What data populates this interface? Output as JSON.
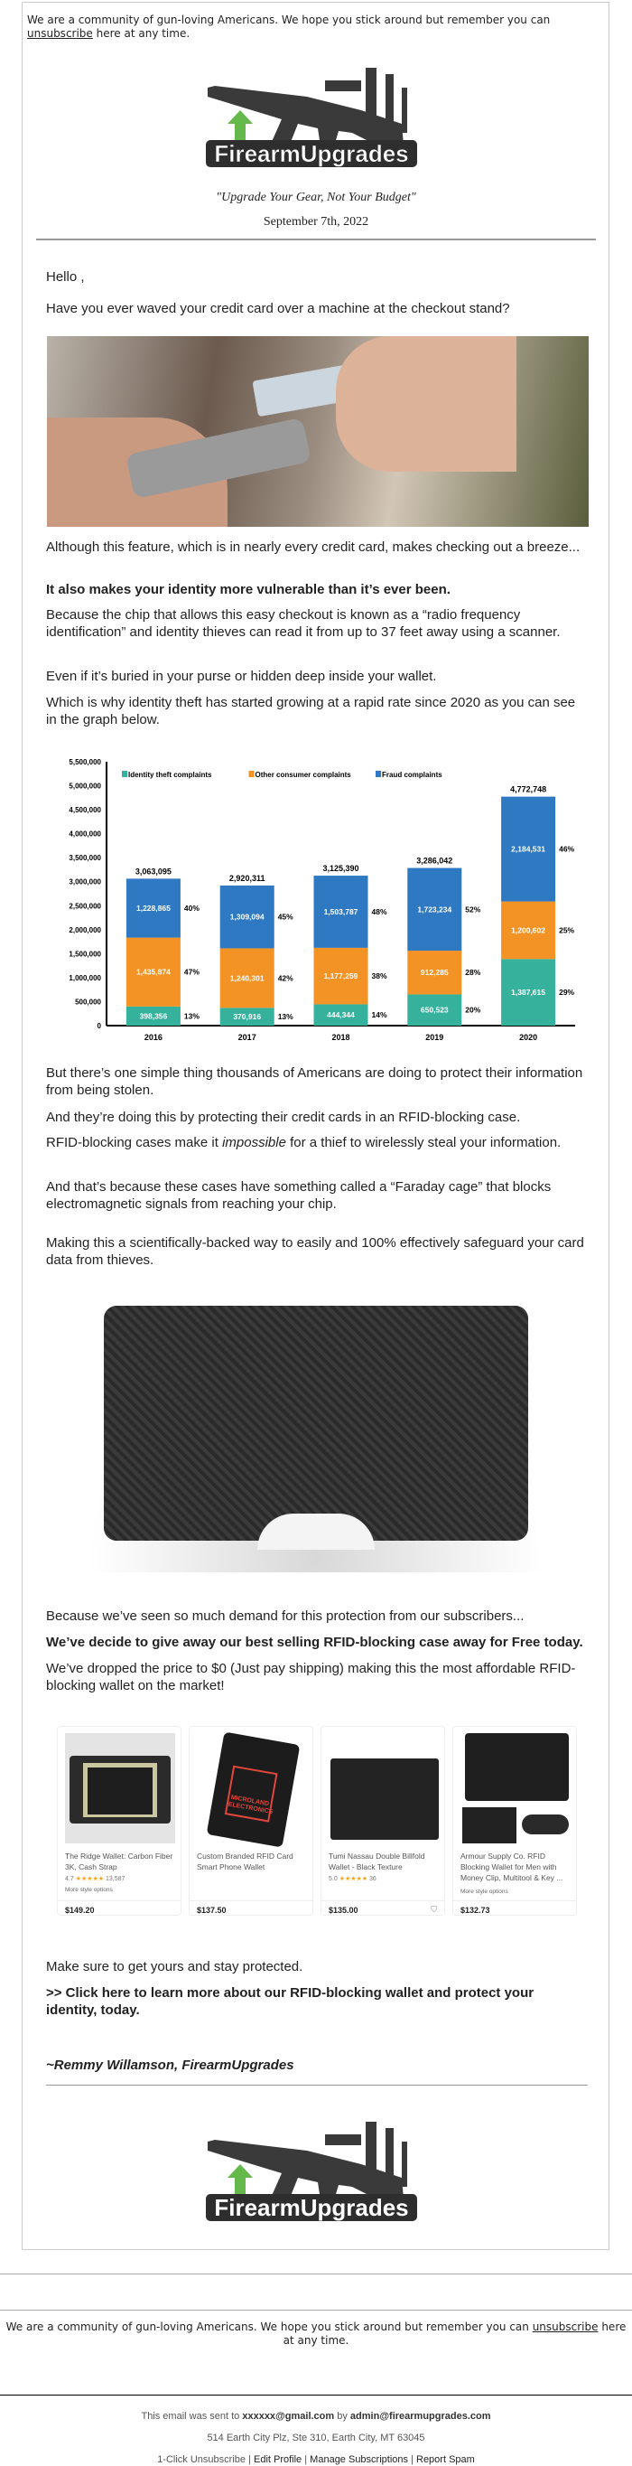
{
  "header": {
    "note_before": "We are a community of gun-loving Americans. We hope you stick around but remember you can ",
    "unsubscribe": "unsubscribe",
    "note_after": " here at any time.",
    "logo_text": "FirearmUpgrades",
    "tagline": "\"Upgrade Your Gear, Not Your Budget\"",
    "date": "September 7th, 2022"
  },
  "body": {
    "greeting": "Hello ,",
    "question": "Have you ever waved your credit card over a machine at the checkout stand?",
    "p1": "Although this feature, which is in nearly every credit card, makes checking out a breeze...",
    "p2": "It also makes your identity more vulnerable than it’s ever been.",
    "p3": "Because the chip that allows this easy checkout is known as a “radio frequency identification” and identity thieves can read it from up to 37 feet away using a scanner.",
    "p4": "Even if it’s buried in your purse or hidden deep inside your wallet.",
    "p5": "Which is why identity theft has started growing at a rapid rate since 2020 as you can see in the graph below.",
    "p6": "But there’s one simple thing thousands of Americans are doing to protect their information from being stolen.",
    "p7": "And they’re doing this by protecting their credit cards in an RFID-blocking case.",
    "p8a": "RFID-blocking cases make it ",
    "p8i": "impossible",
    "p8b": " for a thief to wirelessly steal your information.",
    "p9": "And that’s because these cases have something called a “Faraday cage” that blocks electromagnetic signals from reaching your chip.",
    "p10": "Making this a scientifically-backed way to easily and 100% effectively safeguard your card data from thieves.",
    "p11": "Because we’ve seen so much demand for this protection from our subscribers...",
    "p12": "We’ve decide to give away our best selling RFID-blocking case away for Free today.",
    "p13": "We’ve dropped the price to $0 (Just pay shipping) making this the most affordable RFID-blocking wallet on the market!",
    "p14": "Make sure to get yours and stay protected.",
    "cta": ">> Click here to learn more about our RFID-blocking wallet and protect your identity, today.",
    "signature": "~Remmy Willamson, FirearmUpgrades"
  },
  "products": [
    {
      "title": "The Ridge Wallet: Carbon Fiber 3K, Cash Strap",
      "rating": "4.7",
      "stars": "★★★★★",
      "reviews": "13,587",
      "more": "More style options",
      "price": "$149.20"
    },
    {
      "title": "Custom Branded RFID Card Smart Phone Wallet",
      "rating": "",
      "stars": "",
      "reviews": "",
      "more": "",
      "price": "$137.50",
      "brand": "MICROLAND ELECTRONICS"
    },
    {
      "title": "Tumi Nassau Double Billfold Wallet - Black Texture",
      "rating": "5.0",
      "stars": "★★★★★",
      "reviews": "36",
      "more": "",
      "price": "$135.00"
    },
    {
      "title": "Armour Supply Co. RFID Blocking Wallet for Men with Money Clip, Multitool & Key ...",
      "rating": "",
      "stars": "",
      "reviews": "",
      "more": "More style options",
      "price": "$132.73"
    }
  ],
  "chart_data": {
    "type": "bar",
    "stacked": true,
    "categories": [
      "2016",
      "2017",
      "2018",
      "2019",
      "2020"
    ],
    "series": [
      {
        "name": "Identity theft complaints",
        "color": "#36b19c",
        "values": [
          398356,
          370916,
          444344,
          650523,
          1387615
        ],
        "labels": [
          "398,356",
          "370,916",
          "444,344",
          "650,523",
          "1,387,615"
        ],
        "pct": [
          "13%",
          "13%",
          "14%",
          "20%",
          "29%"
        ]
      },
      {
        "name": "Other consumer complaints",
        "color": "#f39325",
        "values": [
          1435874,
          1240301,
          1177259,
          912285,
          1200602
        ],
        "labels": [
          "1,435,874",
          "1,240,301",
          "1,177,259",
          "912,285",
          "1,200,602"
        ],
        "pct": [
          "47%",
          "42%",
          "38%",
          "28%",
          "25%"
        ]
      },
      {
        "name": "Fraud complaints",
        "color": "#2f79c2",
        "values": [
          1228865,
          1309094,
          1503787,
          1723234,
          2184531
        ],
        "labels": [
          "1,228,865",
          "1,309,094",
          "1,503,787",
          "1,723,234",
          "2,184,531"
        ],
        "pct": [
          "40%",
          "45%",
          "48%",
          "52%",
          "46%"
        ]
      }
    ],
    "totals": [
      "3,063,095",
      "2,920,311",
      "3,125,390",
      "3,286,042",
      "4,772,748"
    ],
    "ylim": [
      0,
      5500000
    ],
    "yticks": [
      "0",
      "500,000",
      "1,000,000",
      "1,500,000",
      "2,000,000",
      "2,500,000",
      "3,000,000",
      "3,500,000",
      "4,000,000",
      "4,500,000",
      "5,000,000",
      "5,500,000"
    ],
    "legend": "top",
    "grid": false
  },
  "footer": {
    "note_before": "We are a community of gun-loving Americans. We hope you stick around but remember you can ",
    "unsubscribe": "unsubscribe",
    "note_after": " here at any time.",
    "sent_prefix": "This email was sent to ",
    "sent_to": "xxxxxx@gmail.com",
    "sent_mid": " by ",
    "sent_from": "admin@firearmupgrades.com",
    "address": "514 Earth City Plz, Ste 310, Earth City, MT 63045",
    "links": [
      "1-Click Unsubscribe",
      "Edit Profile",
      "Manage Subscriptions",
      "Report Spam"
    ],
    "sep": " | "
  }
}
